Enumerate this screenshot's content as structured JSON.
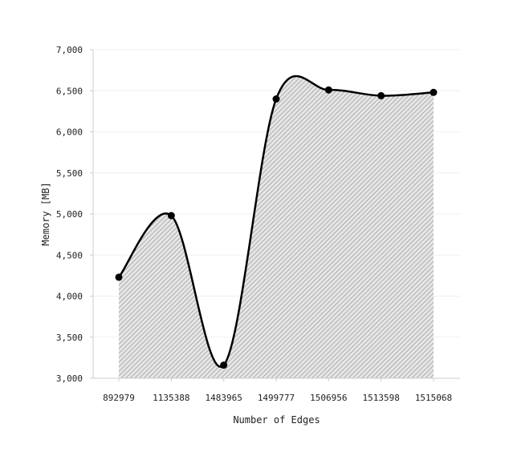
{
  "chart_data": {
    "type": "area",
    "title": "",
    "xlabel": "Number of Edges",
    "ylabel": "Memory [MB]",
    "categories": [
      "892979",
      "1135388",
      "1483965",
      "1499777",
      "1506956",
      "1513598",
      "1515068"
    ],
    "series": [
      {
        "values": [
          4230,
          4980,
          3160,
          6400,
          6510,
          6440,
          6480
        ]
      }
    ],
    "ylim": [
      3000,
      7000
    ],
    "yticks": [
      3000,
      3500,
      4000,
      4500,
      5000,
      5500,
      6000,
      6500,
      7000
    ],
    "ytick_labels": [
      "3,000",
      "3,500",
      "4,000",
      "4,500",
      "5,000",
      "5,500",
      "6,000",
      "6,500",
      "7,000"
    ],
    "grid": true,
    "fill": "hatched",
    "line_color": "#000000",
    "fill_color": "#bbbbbb"
  }
}
